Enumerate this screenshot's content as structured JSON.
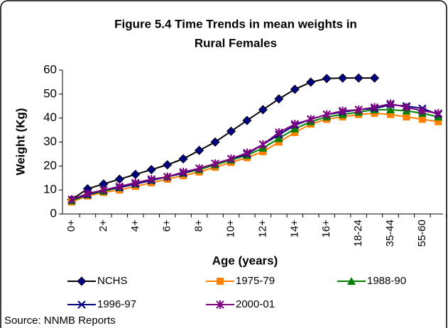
{
  "chart_data": {
    "type": "line",
    "title": "Figure 5.4 Time Trends in mean weights in",
    "subtitle": "Rural Females",
    "x_label": "Age (years)",
    "y_label": "Weight (Kg)",
    "source": "Source: NNMB Reports",
    "categories": [
      "0+",
      null,
      "2+",
      null,
      "4+",
      null,
      "6+",
      null,
      "8+",
      null,
      "10+",
      null,
      "12+",
      null,
      "14+",
      null,
      "16+",
      null,
      "18-24",
      null,
      "35-44",
      null,
      "55-60",
      null
    ],
    "ylim": [
      0,
      60
    ],
    "yticks": [
      0,
      10,
      20,
      30,
      40,
      50,
      60
    ],
    "series": [
      {
        "name": "NCHS",
        "color": "#000000",
        "marker_color": "#000080",
        "marker": "diamond",
        "values": [
          6,
          10.5,
          12.5,
          14.5,
          16.5,
          18.5,
          20.5,
          23,
          26.5,
          30,
          34.5,
          39,
          43.5,
          48,
          52,
          55,
          56.5,
          56.7,
          56.7,
          56.7,
          null,
          null,
          null,
          null
        ]
      },
      {
        "name": "1975-79",
        "color": "#ff8000",
        "marker_color": "#ff8000",
        "marker": "square",
        "values": [
          5,
          7.5,
          9,
          10,
          11.5,
          13,
          14.5,
          16,
          17.5,
          19.5,
          21.5,
          23.5,
          26,
          30,
          34,
          37.5,
          39.5,
          40.5,
          41.5,
          42,
          41.5,
          40.5,
          39.5,
          38.5
        ]
      },
      {
        "name": "1988-90",
        "color": "#008000",
        "marker_color": "#008000",
        "marker": "triangle",
        "values": [
          5.5,
          8,
          9.5,
          11,
          12.5,
          14,
          15.5,
          17,
          18.5,
          20.5,
          22.5,
          24.5,
          27.5,
          31.5,
          35.5,
          38.5,
          40.5,
          41.5,
          42.5,
          43.5,
          43.5,
          43,
          42,
          40.5
        ]
      },
      {
        "name": "1996-97",
        "color": "#000080",
        "marker_color": "#000080",
        "marker": "x",
        "values": [
          6,
          8,
          10,
          11,
          12.5,
          14,
          15.5,
          17,
          19,
          21,
          23,
          25,
          29,
          33,
          37,
          39.5,
          41.5,
          42.5,
          43.5,
          44,
          45.5,
          45,
          44,
          41.5
        ]
      },
      {
        "name": "2000-01",
        "color": "#800080",
        "marker_color": "#800080",
        "marker": "star",
        "values": [
          6,
          8.5,
          10,
          11.5,
          13,
          14.5,
          15.5,
          17.5,
          19,
          21,
          23,
          25.5,
          29,
          34,
          37.5,
          39.5,
          41.5,
          43,
          43.5,
          44.5,
          46,
          44.5,
          43,
          42
        ]
      }
    ]
  }
}
